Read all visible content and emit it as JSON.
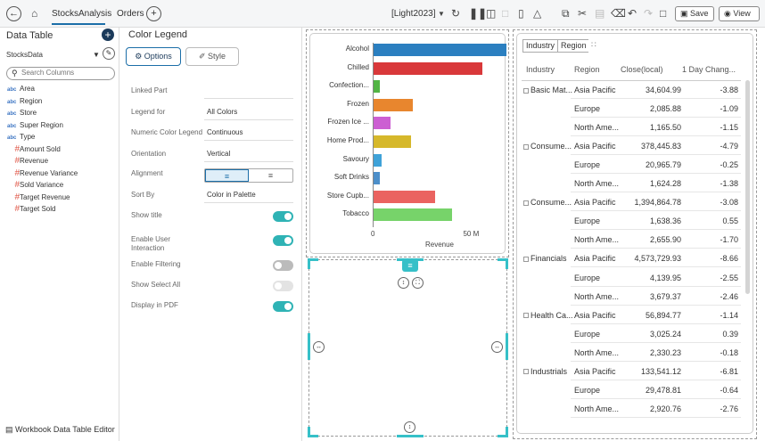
{
  "topbar": {
    "tabs": [
      {
        "label": "StocksAnalysis"
      },
      {
        "label": "Orders"
      }
    ],
    "theme_label": "[Light2023]",
    "save_label": "Save",
    "view_label": "View"
  },
  "left_panel": {
    "title": "Data Table",
    "source_name": "StocksData",
    "search_placeholder": "Search Columns",
    "text_type_label": "abc",
    "number_type_label": "#",
    "text_fields": [
      "Area",
      "Region",
      "Store",
      "Super Region",
      "Type"
    ],
    "number_fields": [
      "Amount Sold",
      "Revenue",
      "Revenue Variance",
      "Sold Variance",
      "Target Revenue",
      "Target Sold"
    ],
    "footer_label": "Workbook Data Table Editor"
  },
  "mid_panel": {
    "title": "Color Legend",
    "options_label": "Options",
    "style_label": "Style",
    "props": {
      "linked_part": {
        "label": "Linked Part",
        "value": ""
      },
      "legend_for": {
        "label": "Legend for",
        "value": "All Colors"
      },
      "numeric_color_legend": {
        "label": "Numeric Color Legend",
        "value": "Continuous"
      },
      "orientation": {
        "label": "Orientation",
        "value": "Vertical"
      },
      "alignment": {
        "label": "Alignment"
      },
      "sort_by": {
        "label": "Sort By",
        "value": "Color in Palette"
      },
      "show_title": {
        "label": "Show title",
        "on": true
      },
      "enable_user_interaction": {
        "label": "Enable User Interaction",
        "on": true
      },
      "enable_filtering": {
        "label": "Enable Filtering",
        "on": false
      },
      "show_select_all": {
        "label": "Show Select All",
        "on": false
      },
      "display_in_pdf": {
        "label": "Display in PDF",
        "on": true
      }
    }
  },
  "chart_data": {
    "type": "bar",
    "orientation": "horizontal",
    "categories": [
      "Alcohol",
      "Chilled",
      "Confection...",
      "Frozen",
      "Frozen Ice ...",
      "Home Prod...",
      "Savoury",
      "Soft Drinks",
      "Store Cupb...",
      "Tobacco"
    ],
    "values": [
      72,
      59,
      3.5,
      21.5,
      9,
      20.5,
      4.5,
      3.5,
      33.5,
      42.5
    ],
    "colors": [
      "#2b7fc0",
      "#d9383a",
      "#52b444",
      "#e8862e",
      "#cc5fd2",
      "#d6b82b",
      "#3fa2d8",
      "#4c8fca",
      "#ea6360",
      "#77d36a"
    ],
    "xlim": [
      0,
      72
    ],
    "x_ticks": [
      {
        "value": 0,
        "label": "0"
      },
      {
        "value": 50,
        "label": "50 M"
      }
    ],
    "xlabel": "Revenue",
    "title": ""
  },
  "table": {
    "chips": [
      "Industry",
      "Region"
    ],
    "headers": [
      "Industry",
      "Region",
      "Close(local)",
      "1 Day Chang..."
    ],
    "groups": [
      {
        "industry": "Basic Mat...",
        "rows": [
          {
            "region": "Asia Pacific",
            "close": "34,604.99",
            "change": "-3.88"
          },
          {
            "region": "Europe",
            "close": "2,085.88",
            "change": "-1.09"
          },
          {
            "region": "North Ame...",
            "close": "1,165.50",
            "change": "-1.15"
          }
        ]
      },
      {
        "industry": "Consume...",
        "rows": [
          {
            "region": "Asia Pacific",
            "close": "378,445.83",
            "change": "-4.79"
          },
          {
            "region": "Europe",
            "close": "20,965.79",
            "change": "-0.25"
          },
          {
            "region": "North Ame...",
            "close": "1,624.28",
            "change": "-1.38"
          }
        ]
      },
      {
        "industry": "Consume...",
        "rows": [
          {
            "region": "Asia Pacific",
            "close": "1,394,864.78",
            "change": "-3.08"
          },
          {
            "region": "Europe",
            "close": "1,638.36",
            "change": "0.55"
          },
          {
            "region": "North Ame...",
            "close": "2,655.90",
            "change": "-1.70"
          }
        ]
      },
      {
        "industry": "Financials",
        "rows": [
          {
            "region": "Asia Pacific",
            "close": "4,573,729.93",
            "change": "-8.66"
          },
          {
            "region": "Europe",
            "close": "4,139.95",
            "change": "-2.55"
          },
          {
            "region": "North Ame...",
            "close": "3,679.37",
            "change": "-2.46"
          }
        ]
      },
      {
        "industry": "Health Ca...",
        "rows": [
          {
            "region": "Asia Pacific",
            "close": "56,894.77",
            "change": "-1.14"
          },
          {
            "region": "Europe",
            "close": "3,025.24",
            "change": "0.39"
          },
          {
            "region": "North Ame...",
            "close": "2,330.23",
            "change": "-0.18"
          }
        ]
      },
      {
        "industry": "Industrials",
        "rows": [
          {
            "region": "Asia Pacific",
            "close": "133,541.12",
            "change": "-6.81"
          },
          {
            "region": "Europe",
            "close": "29,478.81",
            "change": "-0.64"
          },
          {
            "region": "North Ame...",
            "close": "2,920.76",
            "change": "-2.76"
          }
        ]
      }
    ]
  }
}
